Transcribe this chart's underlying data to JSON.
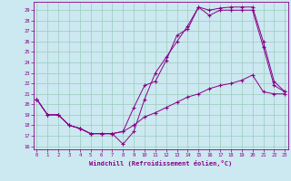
{
  "xlabel": "Windchill (Refroidissement éolien,°C)",
  "background_color": "#cce8f0",
  "grid_color": "#99ccbb",
  "line_color": "#880088",
  "x_ticks": [
    0,
    1,
    2,
    3,
    4,
    5,
    6,
    7,
    8,
    9,
    10,
    11,
    12,
    13,
    14,
    15,
    16,
    17,
    18,
    19,
    20,
    21,
    22,
    23
  ],
  "y_ticks": [
    16,
    17,
    18,
    19,
    20,
    21,
    22,
    23,
    24,
    25,
    26,
    27,
    28,
    29
  ],
  "xlim": [
    -0.3,
    23.3
  ],
  "ylim": [
    15.7,
    29.8
  ],
  "series1_x": [
    0,
    1,
    2,
    3,
    4,
    5,
    6,
    7,
    8,
    9,
    10,
    11,
    12,
    13,
    14,
    15,
    16,
    17,
    18,
    19,
    20,
    21,
    22,
    23
  ],
  "series1_y": [
    20.5,
    19.0,
    19.0,
    18.0,
    17.7,
    17.2,
    17.2,
    17.2,
    17.4,
    19.7,
    21.8,
    22.2,
    24.2,
    26.6,
    27.2,
    29.3,
    28.5,
    29.0,
    29.0,
    29.0,
    29.0,
    25.5,
    21.8,
    21.2
  ],
  "series2_x": [
    0,
    1,
    2,
    3,
    4,
    5,
    6,
    7,
    8,
    9,
    10,
    11,
    12,
    13,
    14,
    15,
    16,
    17,
    18,
    19,
    20,
    21,
    22,
    23
  ],
  "series2_y": [
    20.5,
    19.0,
    19.0,
    18.0,
    17.7,
    17.2,
    17.2,
    17.2,
    16.2,
    17.4,
    20.5,
    23.0,
    24.5,
    26.0,
    27.5,
    29.3,
    29.0,
    29.2,
    29.3,
    29.3,
    29.3,
    26.0,
    22.2,
    21.2
  ],
  "series3_x": [
    0,
    1,
    2,
    3,
    4,
    5,
    6,
    7,
    8,
    9,
    10,
    11,
    12,
    13,
    14,
    15,
    16,
    17,
    18,
    19,
    20,
    21,
    22,
    23
  ],
  "series3_y": [
    20.5,
    19.0,
    19.0,
    18.0,
    17.7,
    17.2,
    17.2,
    17.2,
    17.4,
    18.0,
    18.8,
    19.2,
    19.7,
    20.2,
    20.7,
    21.0,
    21.5,
    21.8,
    22.0,
    22.3,
    22.8,
    21.2,
    21.0,
    21.0
  ]
}
